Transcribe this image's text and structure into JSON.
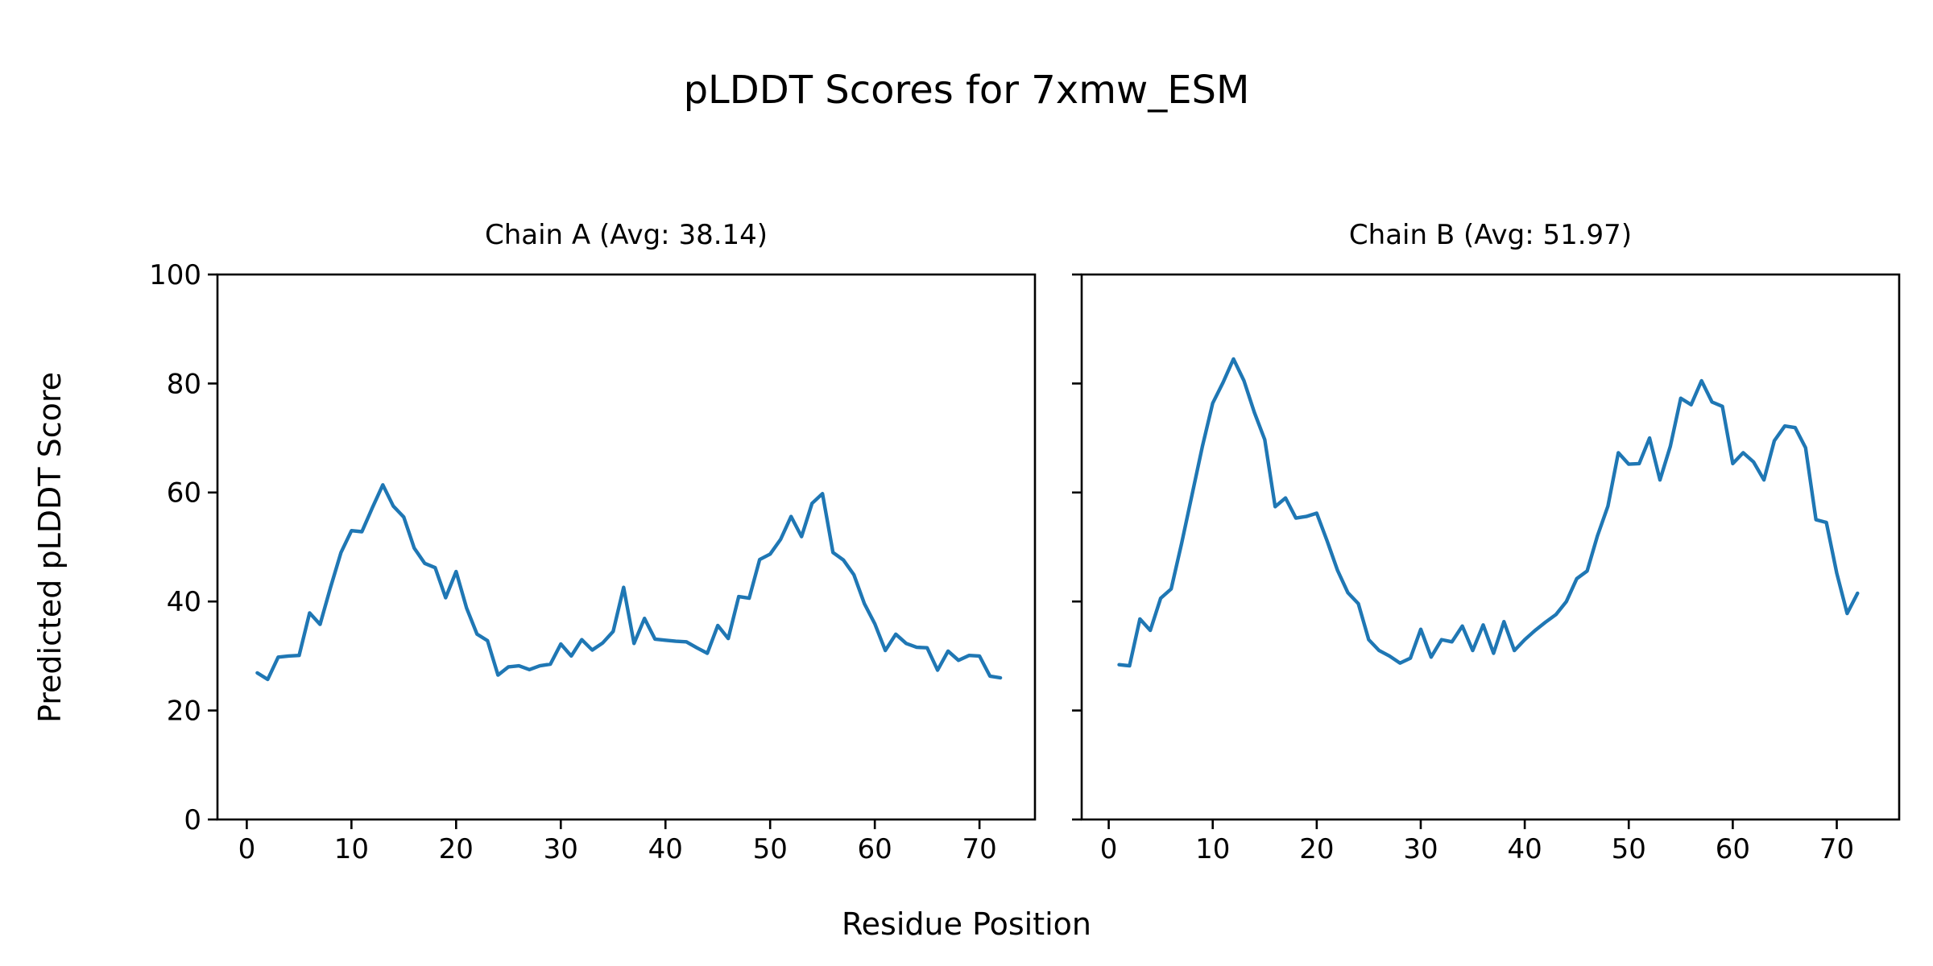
{
  "figure": {
    "title": "pLDDT Scores for 7xmw_ESM",
    "xlabel": "Residue Position",
    "ylabel": "Predicted pLDDT Score",
    "background_color": "#ffffff",
    "text_color": "#000000",
    "spine_color": "#000000"
  },
  "chart_data": [
    {
      "type": "line",
      "id": "chain-a",
      "title": "Chain A (Avg: 38.14)",
      "chain": "A",
      "average_plddt": 38.14,
      "line_color": "#1f77b4",
      "grid": false,
      "legend": null,
      "xlim": [
        -2.8,
        75.3
      ],
      "ylim": [
        0,
        100
      ],
      "xticks": [
        0,
        10,
        20,
        30,
        40,
        50,
        60,
        70
      ],
      "yticks": [
        0,
        20,
        40,
        60,
        80,
        100
      ],
      "ytick_labels_visible": true,
      "x": [
        1,
        2,
        3,
        4,
        5,
        6,
        7,
        8,
        9,
        10,
        11,
        12,
        13,
        14,
        15,
        16,
        17,
        18,
        19,
        20,
        21,
        22,
        23,
        24,
        25,
        26,
        27,
        28,
        29,
        30,
        31,
        32,
        33,
        34,
        35,
        36,
        37,
        38,
        39,
        40,
        41,
        42,
        43,
        44,
        45,
        46,
        47,
        48,
        49,
        50,
        51,
        52,
        53,
        54,
        55,
        56,
        57,
        58,
        59,
        60,
        61,
        62,
        63,
        64,
        65,
        66,
        67,
        68,
        69,
        70,
        71,
        72
      ],
      "y": [
        26.9,
        25.7,
        29.8,
        30.0,
        30.1,
        37.9,
        35.8,
        42.6,
        49.0,
        53.0,
        52.8,
        57.2,
        61.4,
        57.5,
        55.5,
        49.8,
        47.0,
        46.2,
        40.7,
        45.5,
        38.8,
        34.0,
        32.8,
        26.5,
        28.0,
        28.2,
        27.5,
        28.2,
        28.5,
        32.2,
        30.0,
        33.0,
        31.1,
        32.4,
        34.5,
        42.6,
        32.3,
        36.9,
        33.1,
        32.9,
        32.7,
        32.6,
        31.5,
        30.5,
        35.6,
        33.2,
        40.9,
        40.6,
        47.7,
        48.7,
        51.4,
        55.6,
        51.9,
        58.0,
        59.8,
        49.0,
        47.6,
        44.9,
        39.6,
        35.9,
        31.0,
        34.0,
        32.3,
        31.6,
        31.5,
        27.4,
        30.9,
        29.2,
        30.1,
        30.0,
        26.3,
        26.0
      ]
    },
    {
      "type": "line",
      "id": "chain-b",
      "title": "Chain B (Avg: 51.97)",
      "chain": "B",
      "average_plddt": 51.97,
      "line_color": "#1f77b4",
      "grid": false,
      "legend": null,
      "xlim": [
        -2.6,
        76.0
      ],
      "ylim": [
        0,
        100
      ],
      "xticks": [
        0,
        10,
        20,
        30,
        40,
        50,
        60,
        70
      ],
      "yticks": [
        0,
        20,
        40,
        60,
        80,
        100
      ],
      "ytick_labels_visible": false,
      "x": [
        1,
        2,
        3,
        4,
        5,
        6,
        7,
        8,
        9,
        10,
        11,
        12,
        13,
        14,
        15,
        16,
        17,
        18,
        19,
        20,
        21,
        22,
        23,
        24,
        25,
        26,
        27,
        28,
        29,
        30,
        31,
        32,
        33,
        34,
        35,
        36,
        37,
        38,
        39,
        40,
        41,
        42,
        43,
        44,
        45,
        46,
        47,
        48,
        49,
        50,
        51,
        52,
        53,
        54,
        55,
        56,
        57,
        58,
        59,
        60,
        61,
        62,
        63,
        64,
        65,
        66,
        67,
        68,
        69,
        70,
        71,
        72
      ],
      "y": [
        28.4,
        28.2,
        36.8,
        34.7,
        40.6,
        42.3,
        50.6,
        59.5,
        68.4,
        76.4,
        80.2,
        84.5,
        80.5,
        74.7,
        69.7,
        57.4,
        59.0,
        55.3,
        55.6,
        56.2,
        51.1,
        45.7,
        41.6,
        39.6,
        33.0,
        31.0,
        30.0,
        28.7,
        29.6,
        34.9,
        29.8,
        33.0,
        32.6,
        35.5,
        31.0,
        35.7,
        30.5,
        36.3,
        31.0,
        33.0,
        34.7,
        36.2,
        37.6,
        40.0,
        44.2,
        45.6,
        52.1,
        57.5,
        67.3,
        65.2,
        65.3,
        70.0,
        62.3,
        68.5,
        77.3,
        76.1,
        80.5,
        76.6,
        75.8,
        65.3,
        67.3,
        65.6,
        62.3,
        69.5,
        72.2,
        71.9,
        68.2,
        55.0,
        54.5,
        45.2,
        37.8,
        41.5
      ]
    }
  ]
}
